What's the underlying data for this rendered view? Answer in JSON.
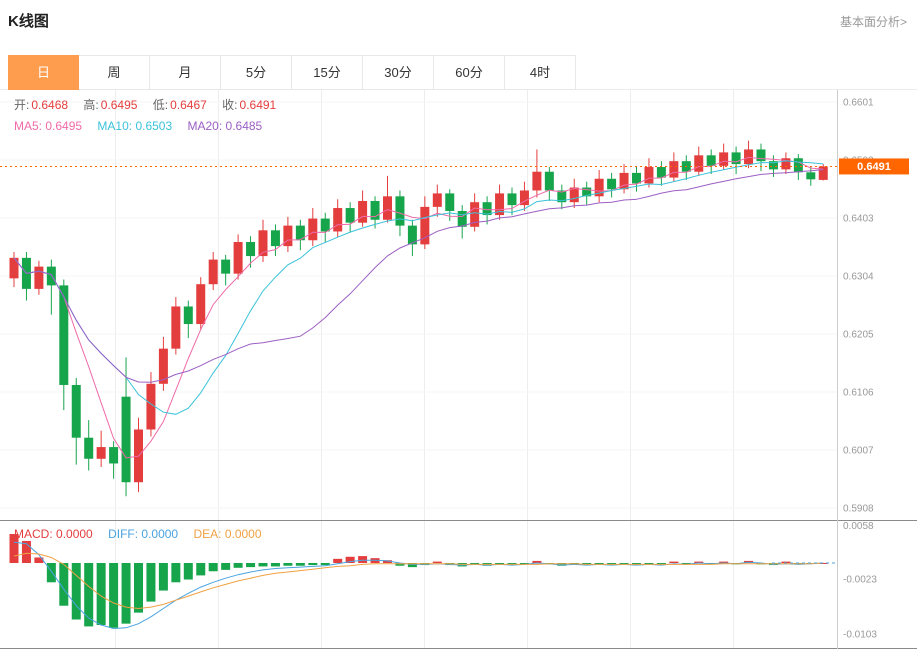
{
  "header": {
    "title": "K线图",
    "link_label": "基本面分析>"
  },
  "colors": {
    "accent_orange": "#ff9d4f"
  },
  "tabs": {
    "active_index": 0,
    "items": [
      {
        "label": "日"
      },
      {
        "label": "周"
      },
      {
        "label": "月"
      },
      {
        "label": "5分"
      },
      {
        "label": "15分"
      },
      {
        "label": "30分"
      },
      {
        "label": "60分"
      },
      {
        "label": "4时"
      }
    ]
  },
  "main_legend": {
    "ohlc": [
      {
        "label": "开:",
        "value": "0.6468",
        "color": "#e43d3d"
      },
      {
        "label": "高:",
        "value": "0.6495",
        "color": "#e43d3d"
      },
      {
        "label": "低:",
        "value": "0.6467",
        "color": "#e43d3d"
      },
      {
        "label": "收:",
        "value": "0.6491",
        "color": "#e43d3d"
      }
    ],
    "ma": [
      {
        "label": "MA5:",
        "value": "0.6495",
        "color": "#ef6aa8"
      },
      {
        "label": "MA10:",
        "value": "0.6503",
        "color": "#3bc2da"
      },
      {
        "label": "MA20:",
        "value": "0.6485",
        "color": "#9c5fc4"
      }
    ]
  },
  "macd_legend": [
    {
      "label": "MACD:",
      "value": "0.0000",
      "color": "#e43d3d"
    },
    {
      "label": "DIFF:",
      "value": "0.0000",
      "color": "#4aa3df"
    },
    {
      "label": "DEA:",
      "value": "0.0000",
      "color": "#f0a143"
    }
  ],
  "chart_data": {
    "type": "candlestick",
    "title": "K线图",
    "timeframe_selected": "日",
    "colors": {
      "up": "#e43d3d",
      "down": "#17a54c",
      "ma5": "#ef6aa8",
      "ma10": "#3bc2da",
      "ma20": "#9c5fc4",
      "diff": "#4aa3df",
      "dea": "#f0a143",
      "price_line": "#ff6600"
    },
    "main": {
      "ylim": [
        0.5908,
        0.6601
      ],
      "y_ticks": [
        0.6601,
        0.6502,
        0.6403,
        0.6304,
        0.6205,
        0.6106,
        0.6007,
        0.5908
      ],
      "current_price": 0.6491,
      "last_candle": {
        "open": 0.6468,
        "high": 0.6495,
        "low": 0.6467,
        "close": 0.6491
      },
      "ma_values": {
        "ma5": 0.6495,
        "ma10": 0.6503,
        "ma20": 0.6485
      },
      "ohlc": [
        [
          0.63,
          0.6345,
          0.6285,
          0.6335
        ],
        [
          0.6335,
          0.6345,
          0.6262,
          0.6282
        ],
        [
          0.6282,
          0.633,
          0.6272,
          0.632
        ],
        [
          0.632,
          0.6332,
          0.6238,
          0.6288
        ],
        [
          0.6288,
          0.6298,
          0.6075,
          0.6118
        ],
        [
          0.6118,
          0.613,
          0.5982,
          0.6028
        ],
        [
          0.6028,
          0.6058,
          0.5972,
          0.5992
        ],
        [
          0.5992,
          0.604,
          0.5978,
          0.6012
        ],
        [
          0.6012,
          0.6022,
          0.5958,
          0.5984
        ],
        [
          0.6098,
          0.6165,
          0.5928,
          0.5952
        ],
        [
          0.5952,
          0.6062,
          0.5935,
          0.6042
        ],
        [
          0.6042,
          0.614,
          0.603,
          0.612
        ],
        [
          0.612,
          0.62,
          0.6108,
          0.618
        ],
        [
          0.618,
          0.6268,
          0.617,
          0.6252
        ],
        [
          0.6252,
          0.6262,
          0.6198,
          0.6222
        ],
        [
          0.6222,
          0.6302,
          0.6212,
          0.629
        ],
        [
          0.629,
          0.6345,
          0.628,
          0.6332
        ],
        [
          0.6332,
          0.634,
          0.6288,
          0.6308
        ],
        [
          0.6308,
          0.6375,
          0.6298,
          0.6362
        ],
        [
          0.6362,
          0.6372,
          0.6318,
          0.6338
        ],
        [
          0.6338,
          0.64,
          0.6328,
          0.6382
        ],
        [
          0.6382,
          0.6392,
          0.6338,
          0.6355
        ],
        [
          0.6355,
          0.6405,
          0.6345,
          0.639
        ],
        [
          0.639,
          0.64,
          0.6348,
          0.6365
        ],
        [
          0.6365,
          0.642,
          0.6355,
          0.6402
        ],
        [
          0.6402,
          0.6412,
          0.6362,
          0.638
        ],
        [
          0.638,
          0.6435,
          0.637,
          0.642
        ],
        [
          0.642,
          0.643,
          0.6378,
          0.6395
        ],
        [
          0.6395,
          0.645,
          0.6388,
          0.6432
        ],
        [
          0.6432,
          0.644,
          0.6385,
          0.64
        ],
        [
          0.64,
          0.6475,
          0.6395,
          0.644
        ],
        [
          0.644,
          0.645,
          0.6372,
          0.639
        ],
        [
          0.639,
          0.64,
          0.6338,
          0.6358
        ],
        [
          0.6358,
          0.644,
          0.635,
          0.6422
        ],
        [
          0.6422,
          0.646,
          0.6405,
          0.6445
        ],
        [
          0.6445,
          0.6452,
          0.6398,
          0.6415
        ],
        [
          0.6415,
          0.6425,
          0.6368,
          0.6388
        ],
        [
          0.6388,
          0.6445,
          0.638,
          0.643
        ],
        [
          0.643,
          0.644,
          0.6392,
          0.6408
        ],
        [
          0.6408,
          0.646,
          0.64,
          0.6445
        ],
        [
          0.6445,
          0.6455,
          0.6408,
          0.6425
        ],
        [
          0.6425,
          0.6465,
          0.6415,
          0.645
        ],
        [
          0.645,
          0.652,
          0.6438,
          0.6482
        ],
        [
          0.6482,
          0.649,
          0.6432,
          0.645
        ],
        [
          0.645,
          0.646,
          0.6418,
          0.643
        ],
        [
          0.643,
          0.647,
          0.642,
          0.6455
        ],
        [
          0.6455,
          0.6465,
          0.6425,
          0.644
        ],
        [
          0.644,
          0.6485,
          0.643,
          0.647
        ],
        [
          0.647,
          0.648,
          0.6438,
          0.6452
        ],
        [
          0.6452,
          0.6495,
          0.6445,
          0.648
        ],
        [
          0.648,
          0.649,
          0.6448,
          0.6462
        ],
        [
          0.6462,
          0.6505,
          0.6455,
          0.649
        ],
        [
          0.649,
          0.65,
          0.6458,
          0.6472
        ],
        [
          0.6472,
          0.6515,
          0.6465,
          0.65
        ],
        [
          0.65,
          0.651,
          0.6468,
          0.6482
        ],
        [
          0.6482,
          0.6525,
          0.6475,
          0.651
        ],
        [
          0.651,
          0.652,
          0.6478,
          0.6492
        ],
        [
          0.6492,
          0.653,
          0.6485,
          0.6515
        ],
        [
          0.6515,
          0.6525,
          0.6478,
          0.6495
        ],
        [
          0.6495,
          0.6535,
          0.6488,
          0.652
        ],
        [
          0.652,
          0.653,
          0.6483,
          0.65
        ],
        [
          0.65,
          0.651,
          0.6473,
          0.6486
        ],
        [
          0.6486,
          0.6515,
          0.6478,
          0.6505
        ],
        [
          0.6505,
          0.6512,
          0.6468,
          0.6481
        ],
        [
          0.6481,
          0.649,
          0.6458,
          0.6469
        ],
        [
          0.6468,
          0.6495,
          0.6467,
          0.6491
        ]
      ]
    },
    "macd": {
      "ylim": [
        -0.0103,
        0.0058
      ],
      "y_ticks": [
        0.0058,
        -0.0023,
        -0.0103
      ],
      "values": {
        "macd": 0.0,
        "diff": 0.0,
        "dea": 0.0
      },
      "histogram": [
        0.0042,
        0.0032,
        0.0008,
        -0.0028,
        -0.0062,
        -0.0082,
        -0.0092,
        -0.009,
        -0.0094,
        -0.0088,
        -0.0072,
        -0.0056,
        -0.004,
        -0.0028,
        -0.0024,
        -0.0018,
        -0.0012,
        -0.001,
        -0.0007,
        -0.0006,
        -0.0005,
        -0.0005,
        -0.0004,
        -0.0004,
        -0.0003,
        -0.0003,
        0.0006,
        0.0009,
        0.001,
        0.0007,
        0.0004,
        -0.0004,
        -0.0006,
        -0.0003,
        0.0002,
        -0.0003,
        -0.0005,
        -0.0002,
        -0.0004,
        -0.0002,
        -0.0003,
        -0.0001,
        0.0003,
        -0.0002,
        -0.0004,
        -0.0002,
        -0.0003,
        -0.0001,
        -0.0003,
        -0.0001,
        -0.0003,
        -0.0001,
        -0.0002,
        0.0002,
        -0.0002,
        0.0002,
        -0.0002,
        0.0002,
        -0.0002,
        0.0003,
        -0.0002,
        -0.0003,
        0.0002,
        -0.0002,
        -0.0001,
        0.0
      ],
      "diff": [
        0.003,
        0.0028,
        0.0012,
        -0.0012,
        -0.0038,
        -0.0062,
        -0.008,
        -0.009,
        -0.0095,
        -0.0094,
        -0.0088,
        -0.0078,
        -0.0066,
        -0.0054,
        -0.0044,
        -0.0035,
        -0.0028,
        -0.0022,
        -0.0017,
        -0.0013,
        -0.001,
        -0.0008,
        -0.0007,
        -0.0006,
        -0.0005,
        -0.0004,
        -0.0001,
        0.0002,
        0.0004,
        0.0004,
        0.0003,
        0.0,
        -0.0002,
        -0.0002,
        -0.0001,
        -0.0002,
        -0.0003,
        -0.0002,
        -0.0003,
        -0.0002,
        -0.0003,
        -0.0002,
        0.0,
        -0.0001,
        -0.0003,
        -0.0002,
        -0.0003,
        -0.0002,
        -0.0003,
        -0.0002,
        -0.0003,
        -0.0002,
        -0.0003,
        -0.0001,
        -0.0002,
        0.0,
        -0.0001,
        0.0,
        -0.0001,
        0.0001,
        0.0,
        -0.0002,
        -0.0001,
        -0.0002,
        -0.0001,
        0.0
      ],
      "dea": [
        0.001,
        0.0014,
        0.0013,
        0.0008,
        -0.0002,
        -0.0018,
        -0.0034,
        -0.0048,
        -0.0058,
        -0.0064,
        -0.0066,
        -0.0064,
        -0.006,
        -0.0054,
        -0.0048,
        -0.0042,
        -0.0036,
        -0.0031,
        -0.0026,
        -0.0022,
        -0.0018,
        -0.0015,
        -0.0013,
        -0.0011,
        -0.0009,
        -0.0007,
        -0.0005,
        -0.0004,
        -0.0002,
        -0.0001,
        -0.0001,
        -0.0001,
        -0.0001,
        -0.0001,
        -0.0001,
        -0.0001,
        -0.0002,
        -0.0002,
        -0.0002,
        -0.0002,
        -0.0002,
        -0.0002,
        -0.0002,
        -0.0001,
        -0.0001,
        -0.0001,
        -0.0002,
        -0.0002,
        -0.0002,
        -0.0002,
        -0.0002,
        -0.0002,
        -0.0002,
        -0.0002,
        -0.0002,
        -0.0002,
        -0.0002,
        -0.0001,
        -0.0001,
        -0.0001,
        -0.0001,
        -0.0001,
        -0.0001,
        -0.0001,
        -0.0001,
        0.0
      ]
    }
  }
}
